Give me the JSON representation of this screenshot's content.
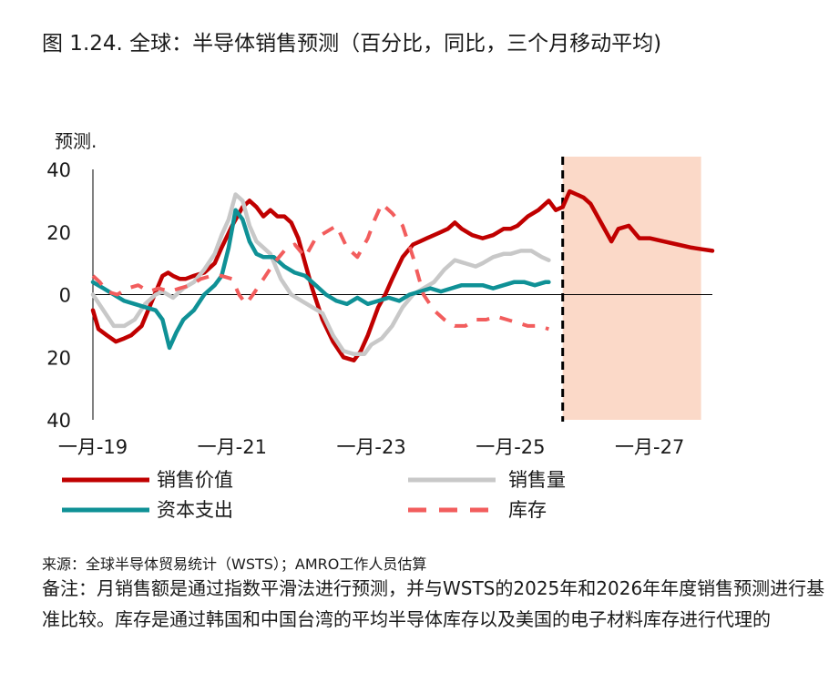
{
  "title": "图 1.24. 全球：半导体销售预测（百分比，同比，三个月移动平均)",
  "source": "来源：全球半导体贸易统计（WSTS）；AMRO工作人员估算",
  "note": "备注：月销售额是通过指数平滑法进行预测，并与WSTS的2025年和2026年年度销售预测进行基准比较。库存是通过韩国和中国台湾的平均半导体库存以及美国的电子材料库存进行代理的",
  "chart_data": {
    "type": "line",
    "title": "图 1.24. 全球：半导体销售预测（百分比，同比，三个月移动平均)",
    "forecast_label": "预测.",
    "forecast_start": 2025.75,
    "forecast_end": 2028.0,
    "xlim": [
      2019.0,
      2028.0
    ],
    "ylim": [
      -40,
      40
    ],
    "x_ticks": [
      {
        "value": 2019.0,
        "label": "一月-19"
      },
      {
        "value": 2021.0,
        "label": "一月-21"
      },
      {
        "value": 2023.0,
        "label": "一月-23"
      },
      {
        "value": 2025.0,
        "label": "一月-25"
      },
      {
        "value": 2027.0,
        "label": "一月-27"
      }
    ],
    "y_ticks": [
      {
        "value": 40,
        "label": "40"
      },
      {
        "value": 20,
        "label": "20"
      },
      {
        "value": 0,
        "label": "0"
      },
      {
        "value": -20,
        "label": "20"
      },
      {
        "value": -40,
        "label": "40"
      }
    ],
    "legend": "bottom",
    "series": [
      {
        "name": "销售价值",
        "color": "#c00000",
        "style": "solid",
        "x": [
          2019.0,
          2019.08,
          2019.2,
          2019.33,
          2019.45,
          2019.55,
          2019.7,
          2019.85,
          2020.0,
          2020.08,
          2020.15,
          2020.25,
          2020.33,
          2020.45,
          2020.6,
          2020.75,
          2020.85,
          2021.0,
          2021.15,
          2021.25,
          2021.35,
          2021.45,
          2021.55,
          2021.65,
          2021.75,
          2021.85,
          2021.95,
          2022.05,
          2022.15,
          2022.3,
          2022.45,
          2022.6,
          2022.75,
          2022.85,
          2022.95,
          2023.0,
          2023.1,
          2023.2,
          2023.3,
          2023.45,
          2023.6,
          2023.7,
          2023.8,
          2023.9,
          2024.0,
          2024.1,
          2024.2,
          2024.3,
          2024.45,
          2024.6,
          2024.75,
          2024.9,
          2025.0,
          2025.1,
          2025.25,
          2025.4,
          2025.55,
          2025.65,
          2025.75
        ],
        "y": [
          -5,
          -11,
          -13,
          -15,
          -14,
          -13,
          -10,
          -2,
          6,
          7,
          6,
          5,
          5,
          6,
          7,
          10,
          15,
          22,
          28,
          30,
          28,
          25,
          27,
          25,
          25,
          23,
          18,
          10,
          2,
          -8,
          -15,
          -20,
          -21,
          -18,
          -13,
          -10,
          -4,
          0,
          5,
          12,
          16,
          17,
          18,
          19,
          20,
          21,
          23,
          21,
          19,
          18,
          19,
          21,
          21,
          22,
          25,
          27,
          30,
          27,
          28
        ]
      },
      {
        "name": "销售价值 预测",
        "color": "#c00000",
        "style": "solid",
        "x": [
          2025.75,
          2025.85,
          2025.95,
          2026.05,
          2026.15,
          2026.3,
          2026.45,
          2026.55,
          2026.7,
          2026.85,
          2027.0,
          2027.2,
          2027.4,
          2027.6,
          2027.75,
          2027.9
        ],
        "y": [
          28,
          33,
          32,
          31,
          29,
          23,
          17,
          21,
          22,
          18,
          18,
          17,
          16,
          15,
          14.5,
          14
        ]
      },
      {
        "name": "销售量",
        "color": "#c8c8c8",
        "style": "solid",
        "x": [
          2019.0,
          2019.15,
          2019.3,
          2019.45,
          2019.6,
          2019.75,
          2019.9,
          2020.0,
          2020.15,
          2020.3,
          2020.45,
          2020.6,
          2020.75,
          2020.85,
          2020.95,
          2021.05,
          2021.15,
          2021.25,
          2021.35,
          2021.45,
          2021.55,
          2021.7,
          2021.85,
          2022.0,
          2022.15,
          2022.3,
          2022.45,
          2022.6,
          2022.75,
          2022.9,
          2023.0,
          2023.15,
          2023.3,
          2023.45,
          2023.6,
          2023.75,
          2023.9,
          2024.05,
          2024.2,
          2024.35,
          2024.5,
          2024.6,
          2024.75,
          2024.9,
          2025.0,
          2025.15,
          2025.3,
          2025.45,
          2025.55
        ],
        "y": [
          0,
          -5,
          -10,
          -10,
          -8,
          -3,
          0,
          1,
          -1,
          2,
          4,
          8,
          13,
          19,
          24,
          32,
          30,
          22,
          17,
          15,
          13,
          5,
          0,
          -2,
          -4,
          -6,
          -13,
          -18,
          -19,
          -19,
          -16,
          -14,
          -10,
          -4,
          0,
          2,
          4,
          8,
          11,
          10,
          9,
          10,
          12,
          13,
          13,
          14,
          14,
          12,
          11
        ]
      },
      {
        "name": "资本支出",
        "color": "#0f9196",
        "style": "solid",
        "x": [
          2019.0,
          2019.15,
          2019.3,
          2019.45,
          2019.6,
          2019.75,
          2019.9,
          2020.0,
          2020.1,
          2020.2,
          2020.3,
          2020.45,
          2020.6,
          2020.75,
          2020.85,
          2020.95,
          2021.05,
          2021.15,
          2021.25,
          2021.35,
          2021.45,
          2021.6,
          2021.75,
          2021.9,
          2022.05,
          2022.2,
          2022.35,
          2022.5,
          2022.65,
          2022.8,
          2022.95,
          2023.1,
          2023.25,
          2023.4,
          2023.55,
          2023.7,
          2023.85,
          2024.0,
          2024.15,
          2024.3,
          2024.45,
          2024.6,
          2024.75,
          2024.9,
          2025.05,
          2025.2,
          2025.35,
          2025.5,
          2025.55
        ],
        "y": [
          4,
          2,
          0,
          -2,
          -3,
          -4,
          -5,
          -8,
          -17,
          -12,
          -8,
          -5,
          0,
          3,
          6,
          15,
          27,
          24,
          17,
          13,
          12,
          12,
          9,
          7,
          6,
          3,
          0,
          -2,
          -3,
          -1,
          -3,
          -2,
          -1,
          -2,
          0,
          1,
          2,
          1,
          2,
          3,
          3,
          3,
          2,
          3,
          4,
          4,
          3,
          4,
          4
        ]
      },
      {
        "name": "库存",
        "color": "#f25d5d",
        "style": "dashed",
        "x": [
          2019.0,
          2019.1,
          2019.2,
          2019.35,
          2019.5,
          2019.65,
          2019.8,
          2019.95,
          2020.1,
          2020.25,
          2020.4,
          2020.55,
          2020.7,
          2020.85,
          2021.0,
          2021.1,
          2021.2,
          2021.3,
          2021.45,
          2021.6,
          2021.75,
          2021.9,
          2022.05,
          2022.2,
          2022.35,
          2022.5,
          2022.65,
          2022.8,
          2022.95,
          2023.05,
          2023.15,
          2023.3,
          2023.45,
          2023.6,
          2023.75,
          2023.9,
          2024.05,
          2024.2,
          2024.35,
          2024.5,
          2024.65,
          2024.8,
          2024.95,
          2025.1,
          2025.25,
          2025.4,
          2025.55
        ],
        "y": [
          6,
          4,
          1,
          0,
          2,
          3,
          1,
          2,
          1,
          2,
          3,
          5,
          6,
          6,
          5,
          0,
          -3,
          0,
          5,
          10,
          14,
          16,
          12,
          18,
          20,
          22,
          15,
          12,
          18,
          24,
          29,
          26,
          22,
          12,
          0,
          -5,
          -8,
          -10,
          -10,
          -8,
          -8,
          -7,
          -8,
          -9,
          -10,
          -10,
          -11
        ]
      }
    ],
    "legend_entries": [
      {
        "name": "销售价值",
        "color": "#c00000",
        "style": "solid"
      },
      {
        "name": "销售量",
        "color": "#c8c8c8",
        "style": "solid"
      },
      {
        "name": "资本支出",
        "color": "#0f9196",
        "style": "solid"
      },
      {
        "name": "库存",
        "color": "#f25d5d",
        "style": "dashed"
      }
    ]
  }
}
